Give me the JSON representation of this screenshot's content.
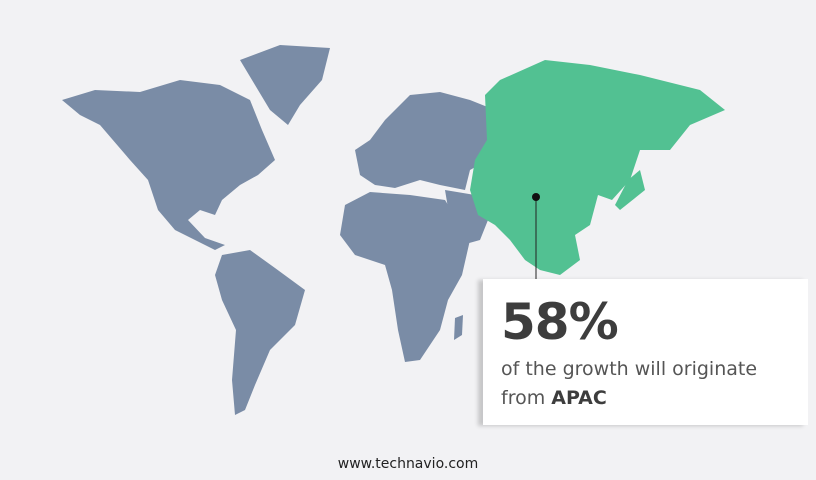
{
  "colors": {
    "land": "#7a8ca6",
    "highlight": "#52c192",
    "background": "#f2f2f4"
  },
  "highlight_region": "APAC",
  "callout": {
    "percent": "58%",
    "text": "of the growth will originate",
    "text2_prefix": "from ",
    "region": "APAC"
  },
  "footer": "www.technavio.com"
}
